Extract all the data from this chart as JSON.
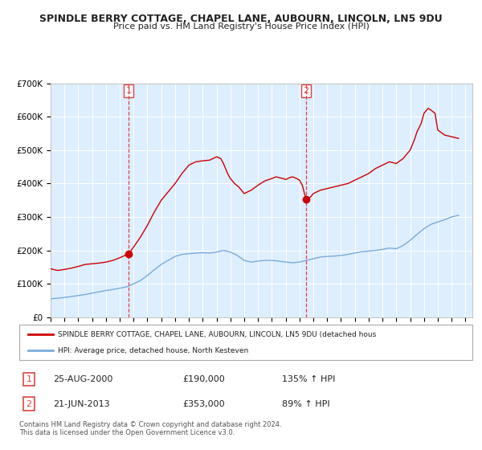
{
  "title": "SPINDLE BERRY COTTAGE, CHAPEL LANE, AUBOURN, LINCOLN, LN5 9DU",
  "subtitle": "Price paid vs. HM Land Registry's House Price Index (HPI)",
  "plot_bg_color": "#ddeeff",
  "sale1_date": 2000.646,
  "sale1_price": 190000,
  "sale1_label": "1",
  "sale2_date": 2013.472,
  "sale2_price": 353000,
  "sale2_label": "2",
  "legend_line1": "SPINDLE BERRY COTTAGE, CHAPEL LANE, AUBOURN, LINCOLN, LN5 9DU (detached hous",
  "legend_line2": "HPI: Average price, detached house, North Kesteven",
  "table_row1": [
    "1",
    "25-AUG-2000",
    "£190,000",
    "135% ↑ HPI"
  ],
  "table_row2": [
    "2",
    "21-JUN-2013",
    "£353,000",
    "89% ↑ HPI"
  ],
  "footnote": "Contains HM Land Registry data © Crown copyright and database right 2024.\nThis data is licensed under the Open Government Licence v3.0.",
  "red_color": "#cc0000",
  "blue_color": "#7aabdb",
  "dashed_color": "#dd4444",
  "xmin": 1995,
  "xmax": 2025.5,
  "ymin": 0,
  "ymax": 700000,
  "hpi_years": [
    1995.0,
    1995.5,
    1996.0,
    1996.5,
    1997.0,
    1997.5,
    1998.0,
    1998.5,
    1999.0,
    1999.5,
    2000.0,
    2000.5,
    2001.0,
    2001.5,
    2002.0,
    2002.5,
    2003.0,
    2003.5,
    2004.0,
    2004.5,
    2005.0,
    2005.5,
    2006.0,
    2006.5,
    2007.0,
    2007.5,
    2008.0,
    2008.5,
    2009.0,
    2009.5,
    2010.0,
    2010.5,
    2011.0,
    2011.5,
    2012.0,
    2012.5,
    2013.0,
    2013.5,
    2014.0,
    2014.5,
    2015.0,
    2015.5,
    2016.0,
    2016.5,
    2017.0,
    2017.5,
    2018.0,
    2018.5,
    2019.0,
    2019.5,
    2020.0,
    2020.5,
    2021.0,
    2021.5,
    2022.0,
    2022.5,
    2023.0,
    2023.5,
    2024.0,
    2024.5
  ],
  "hpi_values": [
    55000,
    57000,
    59000,
    62000,
    65000,
    68000,
    72000,
    76000,
    80000,
    83000,
    87000,
    91000,
    100000,
    110000,
    125000,
    142000,
    158000,
    170000,
    182000,
    188000,
    190000,
    192000,
    193000,
    192000,
    195000,
    200000,
    195000,
    185000,
    170000,
    165000,
    168000,
    170000,
    170000,
    168000,
    165000,
    163000,
    165000,
    170000,
    175000,
    180000,
    182000,
    183000,
    185000,
    188000,
    192000,
    196000,
    198000,
    200000,
    203000,
    207000,
    205000,
    215000,
    230000,
    248000,
    265000,
    278000,
    285000,
    292000,
    300000,
    305000
  ],
  "red_years": [
    1995.0,
    1995.5,
    1996.0,
    1996.5,
    1997.0,
    1997.5,
    1998.0,
    1998.5,
    1999.0,
    1999.5,
    2000.0,
    2000.646,
    2001.0,
    2001.5,
    2002.0,
    2002.5,
    2003.0,
    2003.5,
    2004.0,
    2004.5,
    2005.0,
    2005.5,
    2006.0,
    2006.5,
    2007.0,
    2007.3,
    2007.5,
    2007.8,
    2008.0,
    2008.3,
    2008.6,
    2009.0,
    2009.5,
    2010.0,
    2010.5,
    2011.0,
    2011.3,
    2011.5,
    2011.8,
    2012.0,
    2012.3,
    2012.5,
    2012.8,
    2013.0,
    2013.2,
    2013.472,
    2013.8,
    2014.0,
    2014.5,
    2015.0,
    2015.5,
    2016.0,
    2016.5,
    2017.0,
    2017.5,
    2018.0,
    2018.5,
    2019.0,
    2019.5,
    2020.0,
    2020.5,
    2021.0,
    2021.3,
    2021.5,
    2021.8,
    2022.0,
    2022.3,
    2022.5,
    2022.8,
    2023.0,
    2023.5,
    2024.0,
    2024.5
  ],
  "red_values": [
    145000,
    140000,
    143000,
    147000,
    152000,
    158000,
    160000,
    162000,
    165000,
    170000,
    178000,
    190000,
    210000,
    240000,
    275000,
    315000,
    350000,
    375000,
    400000,
    430000,
    455000,
    465000,
    468000,
    470000,
    480000,
    475000,
    460000,
    430000,
    415000,
    400000,
    390000,
    370000,
    380000,
    395000,
    408000,
    415000,
    420000,
    418000,
    415000,
    412000,
    418000,
    420000,
    415000,
    410000,
    395000,
    353000,
    360000,
    370000,
    380000,
    385000,
    390000,
    395000,
    400000,
    410000,
    420000,
    430000,
    445000,
    455000,
    465000,
    460000,
    475000,
    500000,
    530000,
    555000,
    580000,
    610000,
    625000,
    620000,
    610000,
    560000,
    545000,
    540000,
    535000
  ]
}
